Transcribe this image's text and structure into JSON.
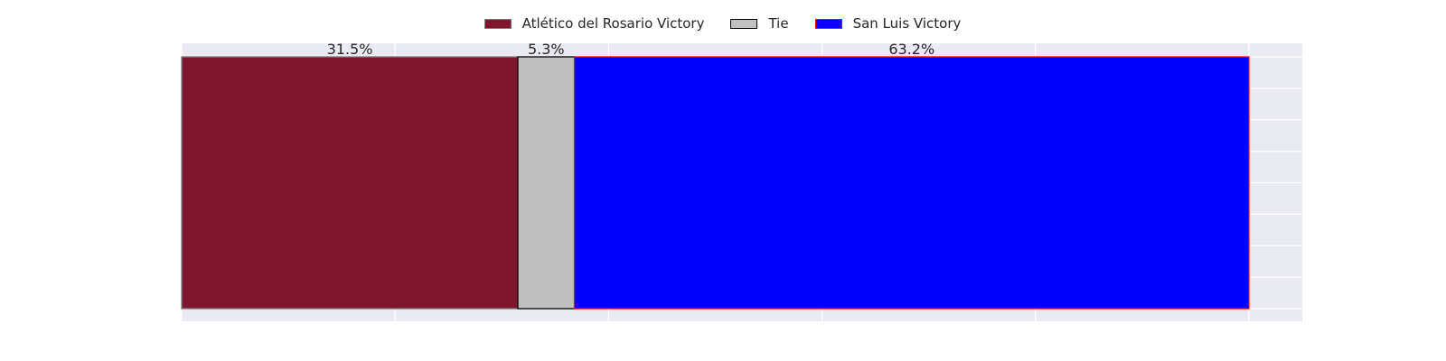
{
  "chart_data": {
    "type": "bar",
    "orientation": "horizontal",
    "stacked": true,
    "normalized_to_percent": true,
    "categories": [
      ""
    ],
    "series": [
      {
        "name": "Atlético del Rosario Victory",
        "values": [
          31.5
        ],
        "label": "31.5%",
        "color": "#801530",
        "edge": "#7a7a7a"
      },
      {
        "name": "Tie",
        "values": [
          5.3
        ],
        "label": "5.3%",
        "color": "#c0c0c0",
        "edge": "#000000"
      },
      {
        "name": "San Luis Victory",
        "values": [
          63.2
        ],
        "label": "63.2%",
        "color": "#0000ff",
        "edge": "#ff0000"
      }
    ],
    "xlim": [
      0,
      105
    ],
    "x_ticks": [
      0,
      20,
      40,
      60,
      80,
      100
    ],
    "title": "",
    "xlabel": "",
    "ylabel": "",
    "grid": true,
    "tick_labels_visible": false,
    "legend_position": "top-center",
    "background": "#eaeaf2",
    "grid_color": "#ffffff"
  }
}
